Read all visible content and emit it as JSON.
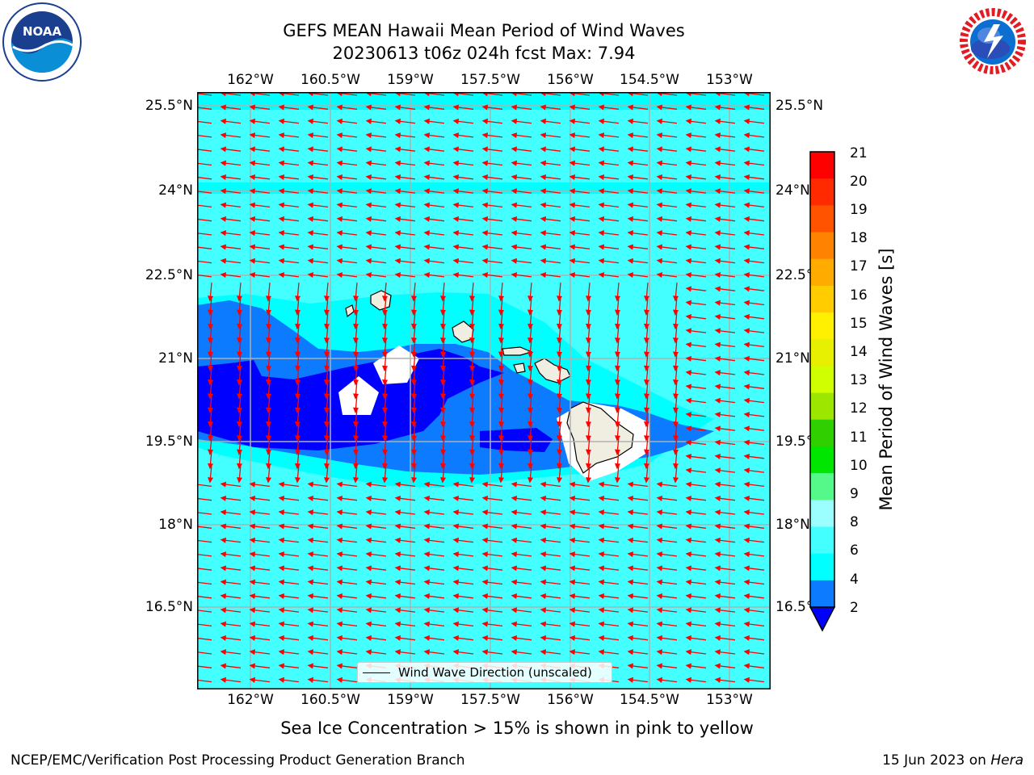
{
  "title": {
    "line1": "GEFS MEAN Hawaii Mean Period of Wind Waves",
    "line2": "20230613 t06z 024h fcst   Max: 7.94"
  },
  "logos": {
    "left": "noaa-logo",
    "right": "nws-logo"
  },
  "axes": {
    "lon_ticks": [
      "162°W",
      "160.5°W",
      "159°W",
      "157.5°W",
      "156°W",
      "154.5°W",
      "153°W"
    ],
    "lat_ticks": [
      "25.5°N",
      "24°N",
      "22.5°N",
      "21°N",
      "19.5°N",
      "18°N",
      "16.5°N"
    ],
    "gridlines": true
  },
  "legend": {
    "label": "Wind Wave Direction (unscaled)",
    "placement": "lower-center"
  },
  "colorbar": {
    "label": "Mean Period of Wind Waves [s]",
    "ticks": [
      "21",
      "20",
      "19",
      "18",
      "17",
      "16",
      "15",
      "14",
      "13",
      "12",
      "11",
      "10",
      "9",
      "8",
      "6",
      "4",
      "2"
    ]
  },
  "note": "Sea Ice Concentration > 15% is shown in pink to yellow",
  "footer": {
    "left": "NCEP/EMC/Verification Post Processing Product Generation Branch",
    "right_date": "15 Jun 2023 on ",
    "right_host": "Hera"
  },
  "colors": {
    "period_0_2": "#0000ff",
    "period_2_4": "#0d7bff",
    "period_4_6": "#00ffff",
    "period_6_8": "#44ffff",
    "period_8_9": "#9cffff",
    "land": "#efeee0",
    "arrows": "#ff0000",
    "grid": "#b0b0b0"
  },
  "chart_data": {
    "type": "heatmap",
    "field": "Mean Period of Wind Waves",
    "units": "s",
    "max_value": 7.94,
    "colorbar_levels": [
      2,
      4,
      6,
      8,
      9,
      10,
      11,
      12,
      13,
      14,
      15,
      16,
      17,
      18,
      19,
      20,
      21
    ],
    "colorbar_colors": [
      "#0d7bff",
      "#00ffff",
      "#44ffff",
      "#9cffff",
      "#54f98a",
      "#00e600",
      "#30cf00",
      "#9ce600",
      "#cfff00",
      "#e6f000",
      "#ffef00",
      "#ffcc00",
      "#ffab00",
      "#ff8200",
      "#ff5300",
      "#ff2a00",
      "#ff0000"
    ],
    "colorbar_extend_min_color": "#0000ff",
    "region": "Hawaii",
    "lon_range": [
      "162.7°W",
      "152.7°W"
    ],
    "lat_range": [
      "15.2°N",
      "25.7°N"
    ]
  }
}
